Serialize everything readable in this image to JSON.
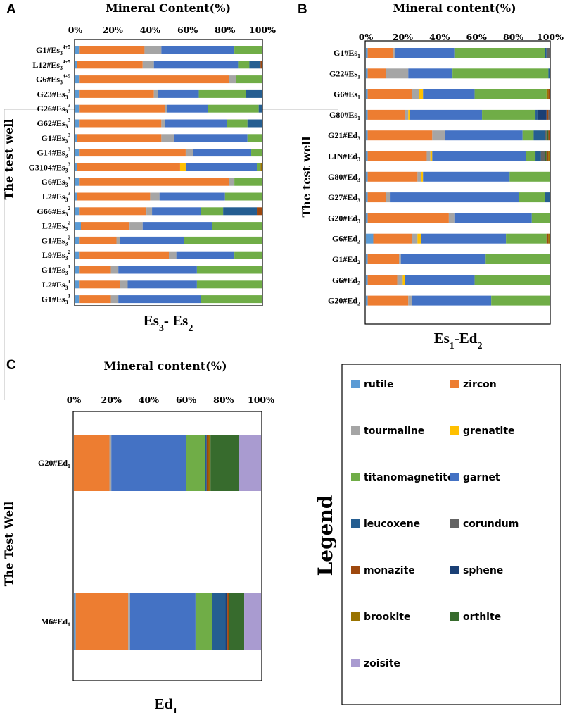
{
  "legend": {
    "title": "Legend",
    "items": [
      {
        "name": "rutile",
        "color": "#5b9bd5"
      },
      {
        "name": "zircon",
        "color": "#ed7d31"
      },
      {
        "name": "tourmaline",
        "color": "#a5a5a5"
      },
      {
        "name": "grenatite",
        "color": "#ffc000"
      },
      {
        "name": "titanomagnetite",
        "color": "#70ad47"
      },
      {
        "name": "garnet",
        "color": "#4472c4"
      },
      {
        "name": "leucoxene",
        "color": "#255e91"
      },
      {
        "name": "corundum",
        "color": "#636363"
      },
      {
        "name": "monazite",
        "color": "#9e480e"
      },
      {
        "name": "sphene",
        "color": "#1a3f75"
      },
      {
        "name": "brookite",
        "color": "#997300"
      },
      {
        "name": "orthite",
        "color": "#376b2d"
      },
      {
        "name": "zoisite",
        "color": "#a99bd0"
      }
    ]
  },
  "chart_data": [
    {
      "panel": "A",
      "type": "bar",
      "stacked": true,
      "orientation": "horizontal",
      "title": "Mineral Content(%)",
      "xlabel": "Es3- Es2",
      "ylabel": "The test well",
      "xlim": [
        0,
        100
      ],
      "ticks": [
        "0%",
        "20%",
        "40%",
        "60%",
        "80%",
        "100%"
      ],
      "categories": [
        {
          "well": "G1#Es",
          "sub": "3",
          "sup": "4+5"
        },
        {
          "well": "L12#Es",
          "sub": "3",
          "sup": "4+5"
        },
        {
          "well": "G6#Es",
          "sub": "3",
          "sup": "4+5"
        },
        {
          "well": "G23#Es",
          "sub": "3",
          "sup": "3"
        },
        {
          "well": "G26#Es",
          "sub": "3",
          "sup": "3"
        },
        {
          "well": "G62#Es",
          "sub": "3",
          "sup": "3"
        },
        {
          "well": "G1#Es",
          "sub": "3",
          "sup": "3"
        },
        {
          "well": "G14#Es",
          "sub": "3",
          "sup": "3"
        },
        {
          "well": "G3104#Es",
          "sub": "3",
          "sup": "3"
        },
        {
          "well": "G6#Es",
          "sub": "3",
          "sup": "3"
        },
        {
          "well": "L2#Es",
          "sub": "3",
          "sup": "3"
        },
        {
          "well": "G66#Es",
          "sub": "3",
          "sup": "2"
        },
        {
          "well": "L2#Es",
          "sub": "3",
          "sup": "2"
        },
        {
          "well": "G1#Es",
          "sub": "3",
          "sup": "2"
        },
        {
          "well": "L9#Es",
          "sub": "3",
          "sup": "2"
        },
        {
          "well": "G1#Es",
          "sub": "3",
          "sup": "1"
        },
        {
          "well": "L2#Es",
          "sub": "3",
          "sup": "1"
        },
        {
          "well": "G1#Es",
          "sub": "3",
          "sup": "1"
        }
      ],
      "rows": [
        [
          [
            "rutile",
            2
          ],
          [
            "zircon",
            35
          ],
          [
            "tourmaline",
            9
          ],
          [
            "garnet",
            39
          ],
          [
            "titanomagnetite",
            15
          ]
        ],
        [
          [
            "rutile",
            1
          ],
          [
            "zircon",
            35
          ],
          [
            "tourmaline",
            6
          ],
          [
            "garnet",
            45
          ],
          [
            "titanomagnetite",
            6
          ],
          [
            "leucoxene",
            6
          ],
          [
            "monazite",
            1
          ]
        ],
        [
          [
            "rutile",
            2
          ],
          [
            "zircon",
            80
          ],
          [
            "tourmaline",
            4
          ],
          [
            "titanomagnetite",
            14
          ]
        ],
        [
          [
            "rutile",
            2
          ],
          [
            "zircon",
            40
          ],
          [
            "tourmaline",
            2
          ],
          [
            "garnet",
            22
          ],
          [
            "titanomagnetite",
            25
          ],
          [
            "leucoxene",
            9
          ]
        ],
        [
          [
            "rutile",
            2
          ],
          [
            "zircon",
            46
          ],
          [
            "tourmaline",
            1
          ],
          [
            "garnet",
            22
          ],
          [
            "titanomagnetite",
            27
          ],
          [
            "leucoxene",
            2
          ]
        ],
        [
          [
            "rutile",
            2
          ],
          [
            "zircon",
            44
          ],
          [
            "tourmaline",
            2
          ],
          [
            "garnet",
            33
          ],
          [
            "titanomagnetite",
            11
          ],
          [
            "leucoxene",
            8
          ]
        ],
        [
          [
            "rutile",
            1
          ],
          [
            "zircon",
            45
          ],
          [
            "tourmaline",
            7
          ],
          [
            "garnet",
            39
          ],
          [
            "titanomagnetite",
            8
          ]
        ],
        [
          [
            "rutile",
            2
          ],
          [
            "zircon",
            57
          ],
          [
            "tourmaline",
            4
          ],
          [
            "garnet",
            31
          ],
          [
            "titanomagnetite",
            6
          ]
        ],
        [
          [
            "rutile",
            1
          ],
          [
            "zircon",
            55
          ],
          [
            "grenatite",
            3
          ],
          [
            "garnet",
            38
          ],
          [
            "titanomagnetite",
            2
          ],
          [
            "brookite",
            1
          ]
        ],
        [
          [
            "rutile",
            2
          ],
          [
            "zircon",
            80
          ],
          [
            "tourmaline",
            3
          ],
          [
            "titanomagnetite",
            15
          ]
        ],
        [
          [
            "rutile",
            1
          ],
          [
            "zircon",
            39
          ],
          [
            "tourmaline",
            5
          ],
          [
            "garnet",
            35
          ],
          [
            "titanomagnetite",
            20
          ]
        ],
        [
          [
            "rutile",
            2
          ],
          [
            "zircon",
            36
          ],
          [
            "tourmaline",
            3
          ],
          [
            "garnet",
            26
          ],
          [
            "titanomagnetite",
            12
          ],
          [
            "leucoxene",
            18
          ],
          [
            "monazite",
            3
          ]
        ],
        [
          [
            "rutile",
            3
          ],
          [
            "zircon",
            26
          ],
          [
            "tourmaline",
            7
          ],
          [
            "garnet",
            37
          ],
          [
            "titanomagnetite",
            27
          ]
        ],
        [
          [
            "rutile",
            2
          ],
          [
            "zircon",
            20
          ],
          [
            "tourmaline",
            2
          ],
          [
            "garnet",
            34
          ],
          [
            "titanomagnetite",
            42
          ]
        ],
        [
          [
            "rutile",
            2
          ],
          [
            "zircon",
            48
          ],
          [
            "tourmaline",
            4
          ],
          [
            "garnet",
            31
          ],
          [
            "titanomagnetite",
            15
          ]
        ],
        [
          [
            "rutile",
            2
          ],
          [
            "zircon",
            17
          ],
          [
            "tourmaline",
            4
          ],
          [
            "garnet",
            42
          ],
          [
            "titanomagnetite",
            35
          ]
        ],
        [
          [
            "rutile",
            2
          ],
          [
            "zircon",
            22
          ],
          [
            "tourmaline",
            4
          ],
          [
            "garnet",
            37
          ],
          [
            "titanomagnetite",
            35
          ]
        ],
        [
          [
            "rutile",
            2
          ],
          [
            "zircon",
            17
          ],
          [
            "tourmaline",
            4
          ],
          [
            "garnet",
            44
          ],
          [
            "titanomagnetite",
            33
          ]
        ]
      ]
    },
    {
      "panel": "B",
      "type": "bar",
      "stacked": true,
      "orientation": "horizontal",
      "title": "Mineral content(%)",
      "xlabel": "Es1-Ed2",
      "ylabel": "The test well",
      "xlim": [
        0,
        100
      ],
      "ticks": [
        "0%",
        "20%",
        "40%",
        "60%",
        "80%",
        "100%"
      ],
      "categories": [
        {
          "well": "G1#Es",
          "sub": "1",
          "sup": ""
        },
        {
          "well": "G22#Es",
          "sub": "1",
          "sup": ""
        },
        {
          "well": "G6#Es",
          "sub": "1",
          "sup": ""
        },
        {
          "well": "G80#Es",
          "sub": "1",
          "sup": ""
        },
        {
          "well": "G21#Ed",
          "sub": "3",
          "sup": ""
        },
        {
          "well": "LIN#Ed",
          "sub": "3",
          "sup": ""
        },
        {
          "well": "G80#Ed",
          "sub": "3",
          "sup": ""
        },
        {
          "well": "G27#Ed",
          "sub": "3",
          "sup": ""
        },
        {
          "well": "G20#Ed",
          "sub": "3",
          "sup": ""
        },
        {
          "well": "G6#Ed",
          "sub": "2",
          "sup": ""
        },
        {
          "well": "G1#Ed",
          "sub": "2",
          "sup": ""
        },
        {
          "well": "G6#Ed",
          "sub": "2",
          "sup": ""
        },
        {
          "well": "G20#Ed",
          "sub": "2",
          "sup": ""
        }
      ],
      "rows": [
        [
          [
            "rutile",
            1
          ],
          [
            "zircon",
            14
          ],
          [
            "tourmaline",
            1
          ],
          [
            "garnet",
            32
          ],
          [
            "titanomagnetite",
            49
          ],
          [
            "leucoxene",
            1
          ],
          [
            "corundum",
            2
          ]
        ],
        [
          [
            "rutile",
            1
          ],
          [
            "zircon",
            10
          ],
          [
            "tourmaline",
            12
          ],
          [
            "garnet",
            24
          ],
          [
            "titanomagnetite",
            52
          ],
          [
            "leucoxene",
            1
          ]
        ],
        [
          [
            "rutile",
            1
          ],
          [
            "zircon",
            24
          ],
          [
            "tourmaline",
            4
          ],
          [
            "grenatite",
            2
          ],
          [
            "garnet",
            28
          ],
          [
            "titanomagnetite",
            39
          ],
          [
            "brookite",
            1
          ],
          [
            "monazite",
            1
          ]
        ],
        [
          [
            "rutile",
            1
          ],
          [
            "zircon",
            20
          ],
          [
            "tourmaline",
            2
          ],
          [
            "grenatite",
            1
          ],
          [
            "garnet",
            39
          ],
          [
            "titanomagnetite",
            29
          ],
          [
            "leucoxene",
            1
          ],
          [
            "sphene",
            5
          ],
          [
            "monazite",
            1
          ],
          [
            "corundum",
            1
          ]
        ],
        [
          [
            "rutile",
            1
          ],
          [
            "zircon",
            35
          ],
          [
            "tourmaline",
            7
          ],
          [
            "garnet",
            42
          ],
          [
            "titanomagnetite",
            6
          ],
          [
            "leucoxene",
            6
          ],
          [
            "corundum",
            1
          ],
          [
            "orthite",
            1
          ],
          [
            "monazite",
            1
          ]
        ],
        [
          [
            "rutile",
            1
          ],
          [
            "zircon",
            32
          ],
          [
            "tourmaline",
            2
          ],
          [
            "grenatite",
            1
          ],
          [
            "garnet",
            51
          ],
          [
            "titanomagnetite",
            5
          ],
          [
            "leucoxene",
            3
          ],
          [
            "corundum",
            2
          ],
          [
            "orthite",
            1
          ],
          [
            "monazite",
            1
          ],
          [
            "brookite",
            1
          ]
        ],
        [
          [
            "rutile",
            1
          ],
          [
            "zircon",
            27
          ],
          [
            "tourmaline",
            2
          ],
          [
            "grenatite",
            1
          ],
          [
            "garnet",
            47
          ],
          [
            "titanomagnetite",
            22
          ]
        ],
        [
          [
            "rutile",
            1
          ],
          [
            "zircon",
            10
          ],
          [
            "tourmaline",
            2
          ],
          [
            "garnet",
            70
          ],
          [
            "titanomagnetite",
            14
          ],
          [
            "leucoxene",
            3
          ]
        ],
        [
          [
            "rutile",
            1
          ],
          [
            "zircon",
            44
          ],
          [
            "tourmaline",
            3
          ],
          [
            "garnet",
            42
          ],
          [
            "titanomagnetite",
            10
          ]
        ],
        [
          [
            "rutile",
            4
          ],
          [
            "zircon",
            21
          ],
          [
            "tourmaline",
            3
          ],
          [
            "grenatite",
            2
          ],
          [
            "garnet",
            46
          ],
          [
            "titanomagnetite",
            22
          ],
          [
            "monazite",
            1
          ],
          [
            "brookite",
            1
          ]
        ],
        [
          [
            "rutile",
            1
          ],
          [
            "zircon",
            17
          ],
          [
            "tourmaline",
            1
          ],
          [
            "garnet",
            46
          ],
          [
            "titanomagnetite",
            35
          ]
        ],
        [
          [
            "rutile",
            1
          ],
          [
            "zircon",
            16
          ],
          [
            "tourmaline",
            3
          ],
          [
            "grenatite",
            1
          ],
          [
            "garnet",
            38
          ],
          [
            "titanomagnetite",
            41
          ]
        ],
        [
          [
            "rutile",
            1
          ],
          [
            "zircon",
            22
          ],
          [
            "tourmaline",
            2
          ],
          [
            "garnet",
            43
          ],
          [
            "titanomagnetite",
            32
          ]
        ]
      ]
    },
    {
      "panel": "C",
      "type": "bar",
      "stacked": true,
      "orientation": "horizontal",
      "title": "Mineral content(%)",
      "xlabel": "Ed1",
      "ylabel": "The Test Well",
      "xlim": [
        0,
        100
      ],
      "ticks": [
        "0%",
        "20%",
        "40%",
        "60%",
        "80%",
        "100%"
      ],
      "categories": [
        {
          "well": "G20#Ed",
          "sub": "1",
          "sup": ""
        },
        {
          "well": "M6#Ed",
          "sub": "1",
          "sup": ""
        }
      ],
      "rows": [
        [
          [
            "zircon",
            19
          ],
          [
            "tourmaline",
            1
          ],
          [
            "garnet",
            40
          ],
          [
            "titanomagnetite",
            10
          ],
          [
            "leucoxene",
            1
          ],
          [
            "monazite",
            1
          ],
          [
            "brookite",
            1
          ],
          [
            "orthite",
            15
          ],
          [
            "zoisite",
            12
          ]
        ],
        [
          [
            "rutile",
            1
          ],
          [
            "zircon",
            28
          ],
          [
            "tourmaline",
            1
          ],
          [
            "garnet",
            35
          ],
          [
            "titanomagnetite",
            9
          ],
          [
            "leucoxene",
            7
          ],
          [
            "sphene",
            1
          ],
          [
            "monazite",
            1
          ],
          [
            "orthite",
            8
          ],
          [
            "zoisite",
            9
          ]
        ]
      ]
    }
  ]
}
